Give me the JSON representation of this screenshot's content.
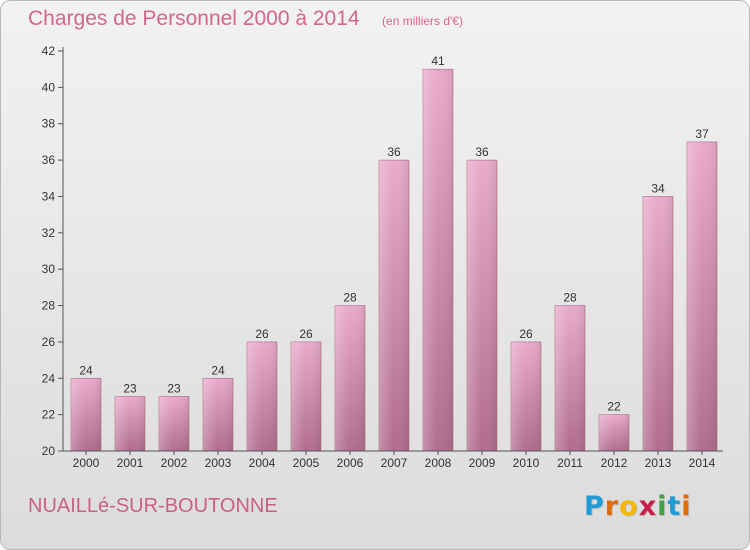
{
  "chart_data": {
    "type": "bar",
    "title": "Charges de Personnel 2000 à 2014",
    "unit_note": "(en milliers d'€)",
    "categories": [
      "2000",
      "2001",
      "2002",
      "2003",
      "2004",
      "2005",
      "2006",
      "2007",
      "2008",
      "2009",
      "2010",
      "2011",
      "2012",
      "2013",
      "2014"
    ],
    "values": [
      24,
      23,
      23,
      24,
      26,
      26,
      28,
      36,
      41,
      36,
      26,
      28,
      22,
      34,
      37
    ],
    "ylim": [
      20,
      42
    ],
    "yticks": [
      20,
      22,
      24,
      26,
      28,
      30,
      32,
      34,
      36,
      38,
      40,
      42
    ],
    "xlabel": "",
    "ylabel": "",
    "grid": false,
    "colors": {
      "bar_top": "#e9aacb",
      "bar_bottom": "#b06c8e",
      "axis": "#555555",
      "tick_text": "#333333",
      "title": "#d4668c"
    }
  },
  "footer": {
    "commune": "NUAILLé-SUR-BOUTONNE",
    "logo_text": "Proxiti",
    "logo_letter_colors": [
      "#1f9bd7",
      "#e36c0a",
      "#f5b800",
      "#c81e4b",
      "#43a047",
      "#1f9bd7",
      "#e36c0a"
    ]
  }
}
